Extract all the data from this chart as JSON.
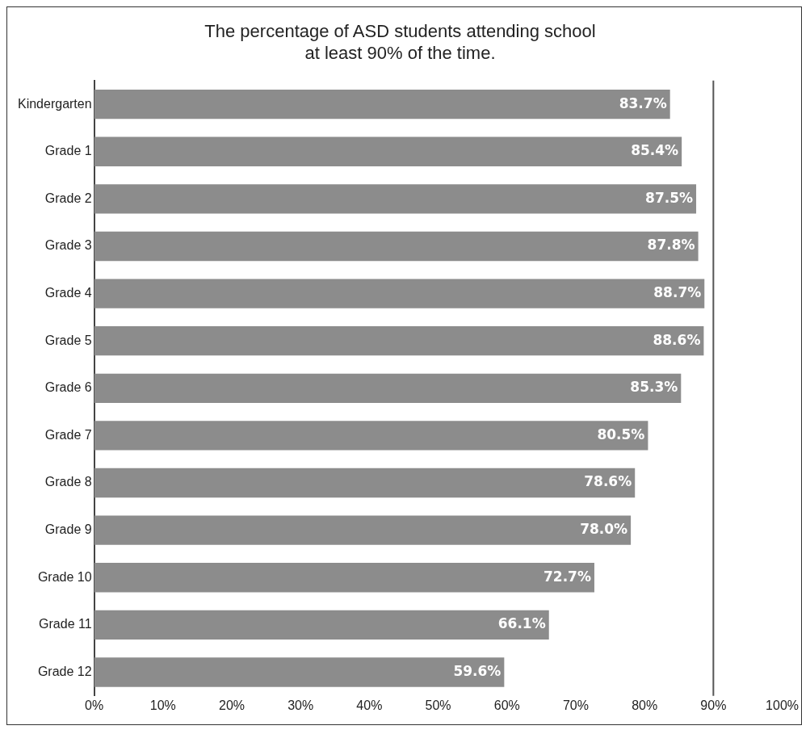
{
  "chart_data": {
    "type": "bar",
    "orientation": "horizontal",
    "title": "The percentage of ASD students attending school\nat least 90% of the time.",
    "categories": [
      "Kindergarten",
      "Grade 1",
      "Grade 2",
      "Grade 3",
      "Grade 4",
      "Grade 5",
      "Grade 6",
      "Grade 7",
      "Grade 8",
      "Grade 9",
      "Grade 10",
      "Grade 11",
      "Grade 12"
    ],
    "values": [
      83.7,
      85.4,
      87.5,
      87.8,
      88.7,
      88.6,
      85.3,
      80.5,
      78.6,
      78.0,
      72.7,
      66.1,
      59.6
    ],
    "value_labels": [
      "83.7%",
      "85.4%",
      "87.5%",
      "87.8%",
      "88.7%",
      "88.6%",
      "85.3%",
      "80.5%",
      "78.6%",
      "78.0%",
      "72.7%",
      "66.1%",
      "59.6%"
    ],
    "color": "#8c8c8c",
    "xlim": [
      0,
      100
    ],
    "xticks": [
      {
        "value": 0,
        "label": "0%"
      },
      {
        "value": 10,
        "label": "10%"
      },
      {
        "value": 20,
        "label": "20%"
      },
      {
        "value": 30,
        "label": "30%"
      },
      {
        "value": 40,
        "label": "40%"
      },
      {
        "value": 50,
        "label": "50%"
      },
      {
        "value": 60,
        "label": "60%"
      },
      {
        "value": 70,
        "label": "70%"
      },
      {
        "value": 80,
        "label": "80%"
      },
      {
        "value": 90,
        "label": "90%"
      },
      {
        "value": 100,
        "label": "100%"
      }
    ],
    "ref_lines": [
      {
        "axis": "x",
        "value": 90,
        "color": "#555555"
      }
    ],
    "grid": false,
    "legend": false
  }
}
